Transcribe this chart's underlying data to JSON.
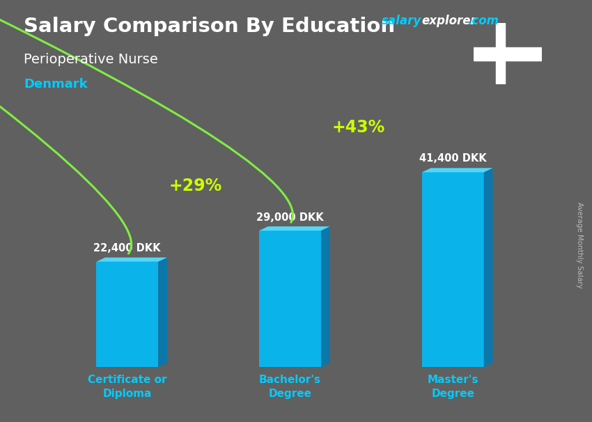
{
  "title_line1": "Salary Comparison By Education",
  "subtitle": "Perioperative Nurse",
  "country": "Denmark",
  "categories": [
    "Certificate or\nDiploma",
    "Bachelor's\nDegree",
    "Master's\nDegree"
  ],
  "values": [
    22400,
    29000,
    41400
  ],
  "value_labels": [
    "22,400 DKK",
    "29,000 DKK",
    "41,400 DKK"
  ],
  "pct_labels": [
    "+29%",
    "+43%"
  ],
  "bar_face_color": "#00BFFF",
  "bar_side_color": "#007BB5",
  "bar_top_color": "#55DDFF",
  "bg_color": "#606060",
  "title_color": "#FFFFFF",
  "subtitle_color": "#FFFFFF",
  "country_color": "#00CCFF",
  "xtick_color": "#00CCFF",
  "arrow_color": "#80EE40",
  "pct_color": "#CCFF00",
  "salary_label_color": "#FFFFFF",
  "website_salary_color": "#00CCFF",
  "website_explorer_color": "#FFFFFF",
  "ylabel_text": "Average Monthly Salary",
  "ylabel_color": "#BBBBBB",
  "bar_width": 0.38,
  "bar_depth_x": 0.055,
  "bar_depth_y": 900,
  "xlim": [
    0.0,
    3.2
  ],
  "ylim": [
    0,
    52000
  ],
  "figsize": [
    8.5,
    6.06
  ],
  "dpi": 100,
  "flag_red": "#C60C30",
  "val_label_offsets": [
    1800,
    1600,
    1800
  ]
}
